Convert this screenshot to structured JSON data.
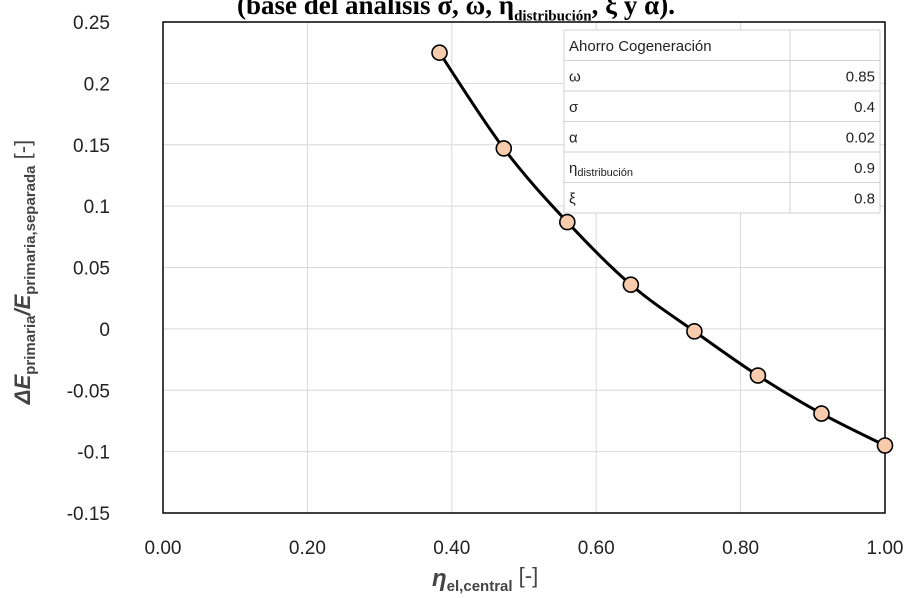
{
  "title_fragment": {
    "lead": "(base del análisis σ, ω, η",
    "sub": "distribución",
    "tail": ", ξ y α)."
  },
  "chart_data": {
    "type": "line",
    "xlim": [
      0.0,
      1.0
    ],
    "ylim": [
      -0.15,
      0.25
    ],
    "x_ticks": [
      "0.00",
      "0.20",
      "0.40",
      "0.60",
      "0.80",
      "1.00"
    ],
    "x_tick_values": [
      0.0,
      0.2,
      0.4,
      0.6,
      0.8,
      1.0
    ],
    "y_ticks": [
      "0.25",
      "0.2",
      "0.15",
      "0.1",
      "0.05",
      "0",
      "-0.05",
      "-0.1",
      "-0.15"
    ],
    "y_tick_values": [
      0.25,
      0.2,
      0.15,
      0.1,
      0.05,
      0.0,
      -0.05,
      -0.1,
      -0.15
    ],
    "grid": true,
    "xlabel": {
      "main": "η",
      "sub": "el,central",
      "unit": "[-]"
    },
    "ylabel": {
      "delta": "ΔE",
      "sub1": "primaria",
      "slash": "/E",
      "sub2": "primaria,separada",
      "unit": "[-]"
    },
    "series": [
      {
        "x": [
          0.383,
          0.472,
          0.56,
          0.648,
          0.736,
          0.824,
          0.912,
          1.0
        ],
        "y": [
          0.225,
          0.147,
          0.087,
          0.036,
          -0.002,
          -0.038,
          -0.069,
          -0.095
        ],
        "line_color": "#000000",
        "marker_fill": "#F8CBAD",
        "marker_edge": "#000000"
      }
    ],
    "params_table": {
      "header": "Ahorro Cogeneración",
      "rows": [
        {
          "label": "ω",
          "sub": "",
          "value": "0.85"
        },
        {
          "label": "σ",
          "sub": "",
          "value": "0.4"
        },
        {
          "label": "α",
          "sub": "",
          "value": "0.02"
        },
        {
          "label": "η",
          "sub": "distribución",
          "value": "0.9"
        },
        {
          "label": "ξ",
          "sub": "",
          "value": "0.8"
        }
      ]
    }
  }
}
